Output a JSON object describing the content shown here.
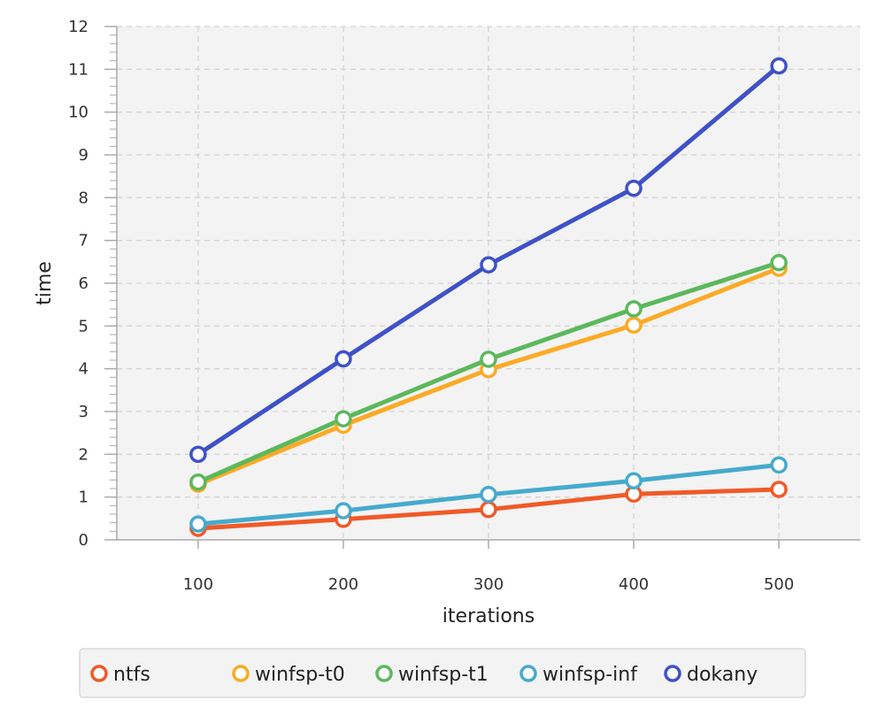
{
  "chart_data": {
    "type": "line",
    "title": "",
    "xlabel": "iterations",
    "ylabel": "time",
    "x": [
      100,
      200,
      300,
      400,
      500
    ],
    "x_ticks": [
      "100",
      "200",
      "300",
      "400",
      "500"
    ],
    "xlim": [
      44,
      556
    ],
    "ylim": [
      0,
      12
    ],
    "y_ticks": [
      "0",
      "1",
      "2",
      "3",
      "4",
      "5",
      "6",
      "7",
      "8",
      "9",
      "10",
      "11",
      "12"
    ],
    "grid": true,
    "legend_position": "bottom",
    "series": [
      {
        "name": "ntfs",
        "color": "#F05A28",
        "values": [
          0.27,
          0.48,
          0.71,
          1.07,
          1.18
        ]
      },
      {
        "name": "winfsp-t0",
        "color": "#FBAA26",
        "values": [
          1.3,
          2.68,
          3.98,
          5.02,
          6.35
        ]
      },
      {
        "name": "winfsp-t1",
        "color": "#5CB85C",
        "values": [
          1.35,
          2.83,
          4.22,
          5.4,
          6.48
        ]
      },
      {
        "name": "winfsp-inf",
        "color": "#46AACC",
        "values": [
          0.37,
          0.68,
          1.06,
          1.38,
          1.75
        ]
      },
      {
        "name": "dokany",
        "color": "#3F51C8",
        "values": [
          2.0,
          4.23,
          6.43,
          8.22,
          11.08
        ]
      }
    ]
  }
}
